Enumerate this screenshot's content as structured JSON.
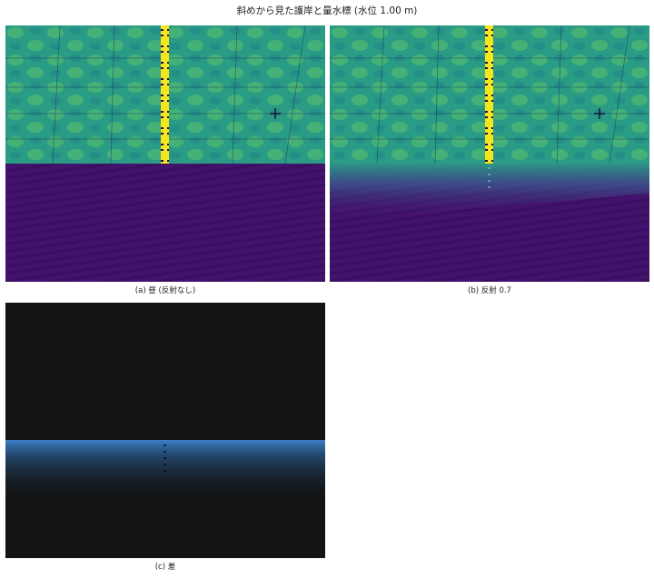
{
  "title": "斜めから見た護岸と量水標 (水位 1.00 m)",
  "panels": [
    {
      "id": "a",
      "caption": "(a) 昼 (反射なし)"
    },
    {
      "id": "b",
      "caption": "(b) 反射 0.7"
    },
    {
      "id": "c",
      "caption": "(c) 差"
    }
  ],
  "colors": {
    "wall_base": "#2a9c85",
    "wall_light": "#5cc36b",
    "wall_dark": "#1f7f8a",
    "water": "#44136e",
    "water_stripe": "#3a0f62",
    "gauge": "#f3e51e",
    "gauge_mark": "#2b0a3d",
    "diff_bg": "#131313",
    "diff_edge": "#3d7fc8"
  }
}
